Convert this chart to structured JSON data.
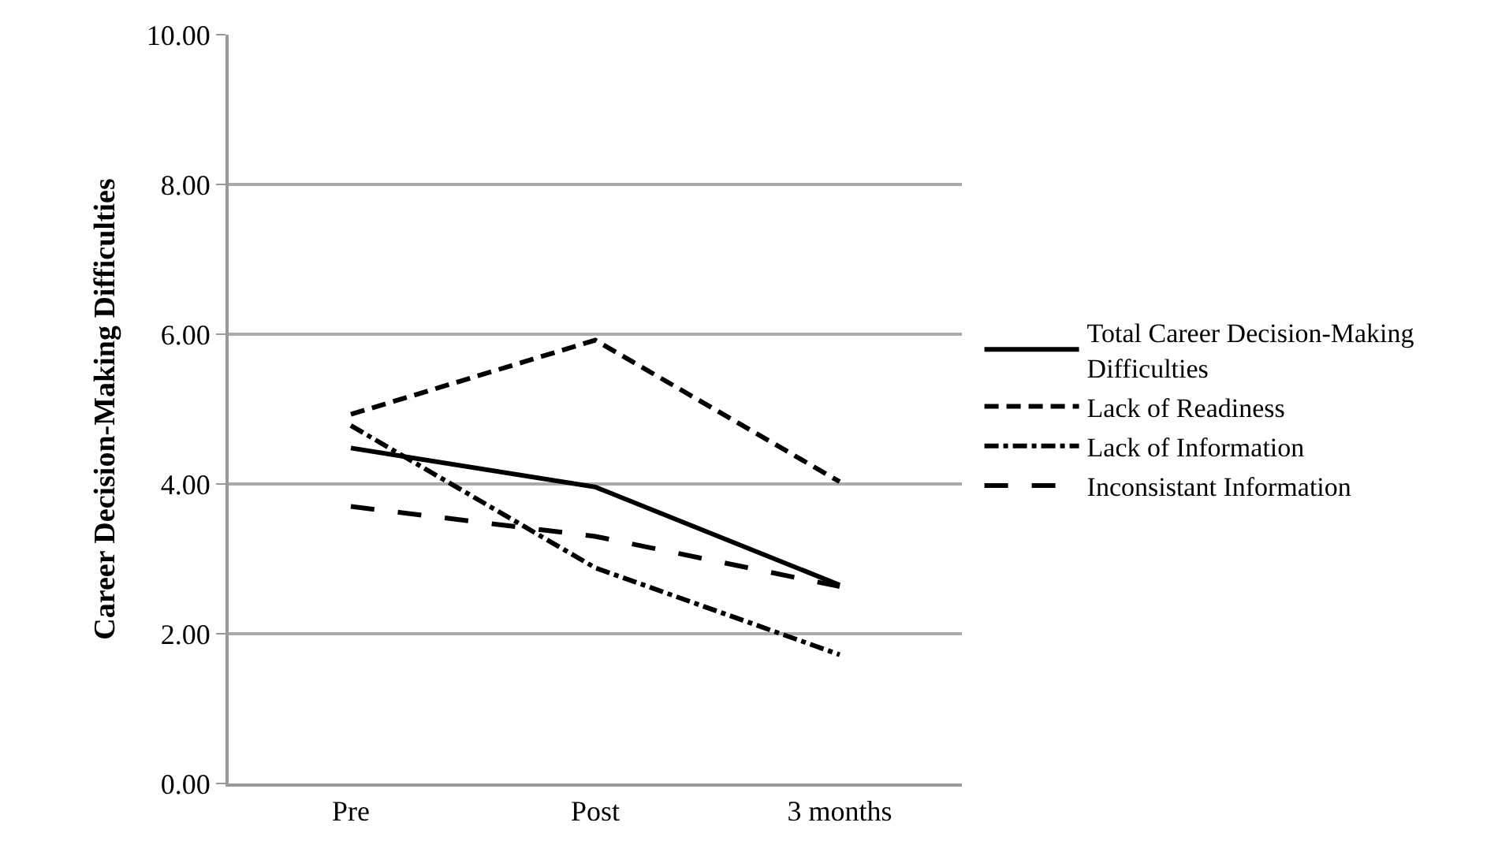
{
  "chart_data": {
    "type": "line",
    "ylabel": "Career Decision-Making Difficulties",
    "categories": [
      "Pre",
      "Post",
      "3 months"
    ],
    "series": [
      {
        "name": "Total Career Decision-Making Difficulties",
        "color": "#000000",
        "line_style": "solid",
        "values": [
          4.48,
          3.96,
          2.65
        ]
      },
      {
        "name": "Lack of Readiness",
        "color": "#000000",
        "line_style": "dashed",
        "values": [
          4.93,
          5.92,
          4.03
        ]
      },
      {
        "name": "Lack of Information",
        "color": "#000000",
        "line_style": "dashdot",
        "values": [
          4.78,
          2.88,
          1.72
        ]
      },
      {
        "name": "Inconsistant Information",
        "color": "#000000",
        "line_style": "longdash",
        "values": [
          3.7,
          3.3,
          2.63
        ]
      }
    ],
    "ylim": [
      0,
      10
    ],
    "yticks": [
      {
        "value": 0,
        "label": "0.00"
      },
      {
        "value": 2,
        "label": "2.00"
      },
      {
        "value": 4,
        "label": "4.00"
      },
      {
        "value": 6,
        "label": "6.00"
      },
      {
        "value": 8,
        "label": "8.00"
      },
      {
        "value": 10,
        "label": "10.00"
      }
    ],
    "grid": "y",
    "legend": "right",
    "marker": "none"
  }
}
